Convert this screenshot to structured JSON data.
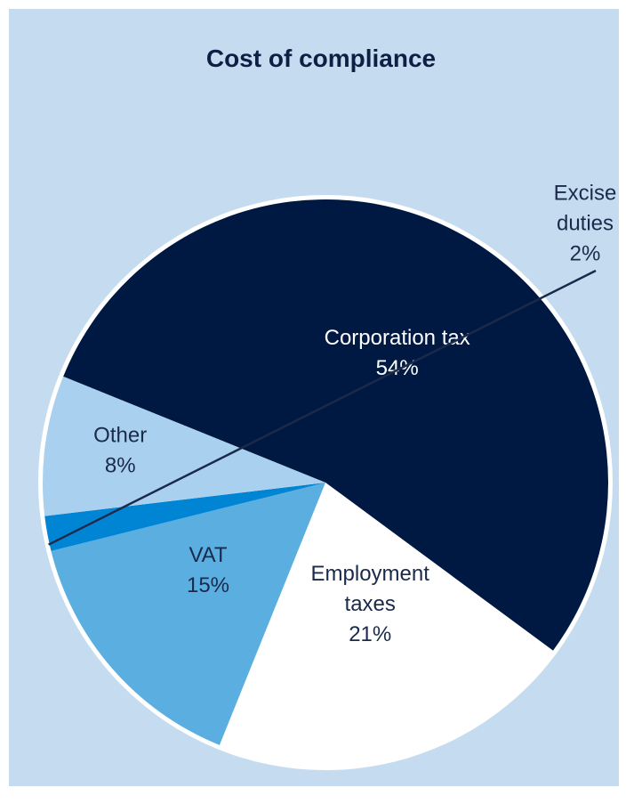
{
  "chart_data": {
    "type": "pie",
    "title": "Cost of compliance",
    "slices": [
      {
        "label_lines": [
          "Corporation tax"
        ],
        "value": 54,
        "value_label": "54%",
        "color": "#001942",
        "text_color": "#ffffff"
      },
      {
        "label_lines": [
          "Employment",
          "taxes"
        ],
        "value": 21,
        "value_label": "21%",
        "color": "#ffffff",
        "text_color": "#1a2a4a"
      },
      {
        "label_lines": [
          "VAT"
        ],
        "value": 15,
        "value_label": "15%",
        "color": "#5aaee0",
        "text_color": "#1a2a4a"
      },
      {
        "label_lines": [
          "Excise",
          "duties"
        ],
        "value": 2,
        "value_label": "2%",
        "color": "#0085d4",
        "text_color": "#1a2a4a"
      },
      {
        "label_lines": [
          "Other"
        ],
        "value": 8,
        "value_label": "8%",
        "color": "#a9d0ee",
        "text_color": "#1a2a4a"
      }
    ],
    "background_color": "#c5dcf0",
    "border_color": "#ffffff"
  }
}
